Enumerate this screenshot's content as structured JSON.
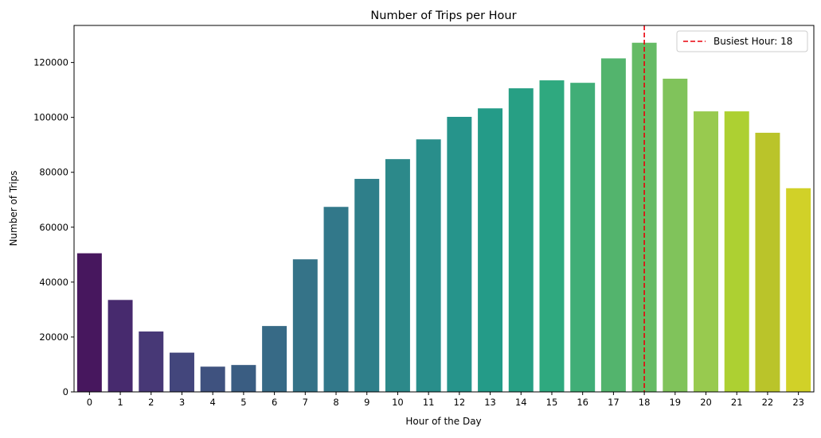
{
  "chart_data": {
    "type": "bar",
    "title": "Number of Trips per Hour",
    "xlabel": "Hour of the Day",
    "ylabel": "Number of Trips",
    "categories": [
      "0",
      "1",
      "2",
      "3",
      "4",
      "5",
      "6",
      "7",
      "8",
      "9",
      "10",
      "11",
      "12",
      "13",
      "14",
      "15",
      "16",
      "17",
      "18",
      "19",
      "20",
      "21",
      "22",
      "23"
    ],
    "values": [
      50500,
      33500,
      22000,
      14300,
      9200,
      9800,
      24000,
      48300,
      67400,
      77600,
      84800,
      92000,
      100200,
      103300,
      110600,
      113500,
      112600,
      121500,
      127200,
      114100,
      102200,
      102200,
      94400,
      74200
    ],
    "ylim": [
      0,
      133500
    ],
    "yticks": [
      0,
      20000,
      40000,
      60000,
      80000,
      100000,
      120000
    ],
    "ytick_labels": [
      "0",
      "20000",
      "40000",
      "60000",
      "80000",
      "100000",
      "120000"
    ],
    "colormap": "viridis",
    "bar_colors": [
      "#47175e",
      "#472a6e",
      "#473876",
      "#43467c",
      "#3f527f",
      "#3a5d82",
      "#376a86",
      "#357388",
      "#32788a",
      "#2f7f8a",
      "#2c898a",
      "#298e8b",
      "#26948b",
      "#249b88",
      "#279f84",
      "#2fa97f",
      "#40ae77",
      "#53b46d",
      "#65bb65",
      "#80c35b",
      "#98ca4f",
      "#add032",
      "#bac42a",
      "#d1d128"
    ],
    "grid": false,
    "reference_line": {
      "type": "vertical",
      "category": "18",
      "color": "#e8000b",
      "style": "dashed",
      "label": "Busiest Hour: 18"
    },
    "legend": {
      "placement": "top-right",
      "entries": [
        "Busiest Hour: 18"
      ]
    }
  }
}
